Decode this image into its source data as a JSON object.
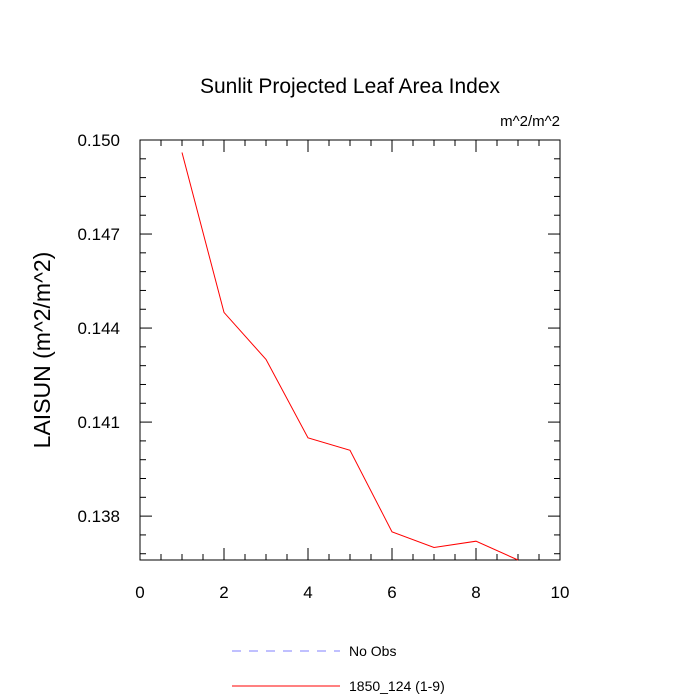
{
  "chart_data": {
    "type": "line",
    "title": "Sunlit Projected Leaf Area Index",
    "units_label": "m^2/m^2",
    "xlabel": "",
    "ylabel": "LAISUN  (m^2/m^2)",
    "xlim": [
      0,
      10
    ],
    "ylim": [
      0.1366,
      0.15
    ],
    "x_ticks": [
      0,
      2,
      4,
      6,
      8,
      10
    ],
    "x_tick_labels": [
      "0",
      "2",
      "4",
      "6",
      "8",
      "10"
    ],
    "y_ticks": [
      0.138,
      0.141,
      0.144,
      0.147,
      0.15
    ],
    "y_tick_labels": [
      "0.138",
      "0.141",
      "0.144",
      "0.147",
      "0.150"
    ],
    "grid": false,
    "series": [
      {
        "name": "1850_124 (1-9)",
        "color": "#ff0000",
        "style": "solid",
        "x": [
          1,
          2,
          3,
          4,
          5,
          6,
          7,
          8,
          9
        ],
        "values": [
          0.1496,
          0.1445,
          0.143,
          0.1405,
          0.1401,
          0.1375,
          0.137,
          0.1372,
          0.1366
        ]
      }
    ],
    "legend": [
      {
        "label": "No Obs",
        "color": "#8080ff",
        "style": "dashed"
      },
      {
        "label": "1850_124 (1-9)",
        "color": "#ff0000",
        "style": "solid"
      }
    ],
    "legend_position": "bottom-center"
  }
}
